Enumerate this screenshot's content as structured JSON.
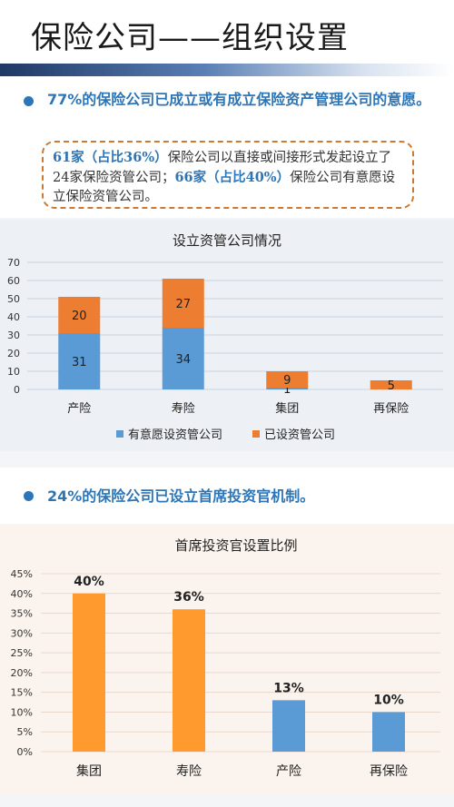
{
  "page": {
    "title": "保险公司——组织设置",
    "bullet1": "77%的保险公司已成立或有成立保险资产管理公司的意愿。",
    "note": {
      "part1": "61家（占比36%）",
      "part2": "保险公司以直接或间接形式发起设立了24家保险资管公司；",
      "part3": "66家（占比40%）",
      "part4": "保险公司有意愿设立保险资管公司。"
    },
    "bullet2": "24%的保险公司已设立首席投资官机制。"
  },
  "chart_data": [
    {
      "type": "bar",
      "stacked": true,
      "title": "设立资管公司情况",
      "categories": [
        "产险",
        "寿险",
        "集团",
        "再保险"
      ],
      "series": [
        {
          "name": "有意愿设资管公司",
          "values": [
            31,
            34,
            1,
            0
          ],
          "labels": [
            "31",
            "34",
            "1",
            ""
          ],
          "color": "#5b9bd5"
        },
        {
          "name": "已设资管公司",
          "values": [
            20,
            27,
            9,
            5
          ],
          "labels": [
            "20",
            "27",
            "9",
            "5"
          ],
          "color": "#ed7d31"
        }
      ],
      "yticks": [
        "0",
        "10",
        "20",
        "30",
        "40",
        "50",
        "60",
        "70"
      ],
      "ylim": [
        0,
        70
      ],
      "grid": true,
      "legend": "bottom"
    },
    {
      "type": "bar",
      "title": "首席投资官设置比例",
      "categories": [
        "集团",
        "寿险",
        "产险",
        "再保险"
      ],
      "values": [
        40,
        36,
        13,
        10
      ],
      "labels": [
        "40%",
        "36%",
        "13%",
        "10%"
      ],
      "colors": [
        "#ff9a2e",
        "#ff9a2e",
        "#5b9bd5",
        "#5b9bd5"
      ],
      "yticks": [
        "0%",
        "5%",
        "10%",
        "15%",
        "20%",
        "25%",
        "30%",
        "35%",
        "40%",
        "45%"
      ],
      "ylim": [
        0,
        45
      ],
      "grid": true
    }
  ]
}
